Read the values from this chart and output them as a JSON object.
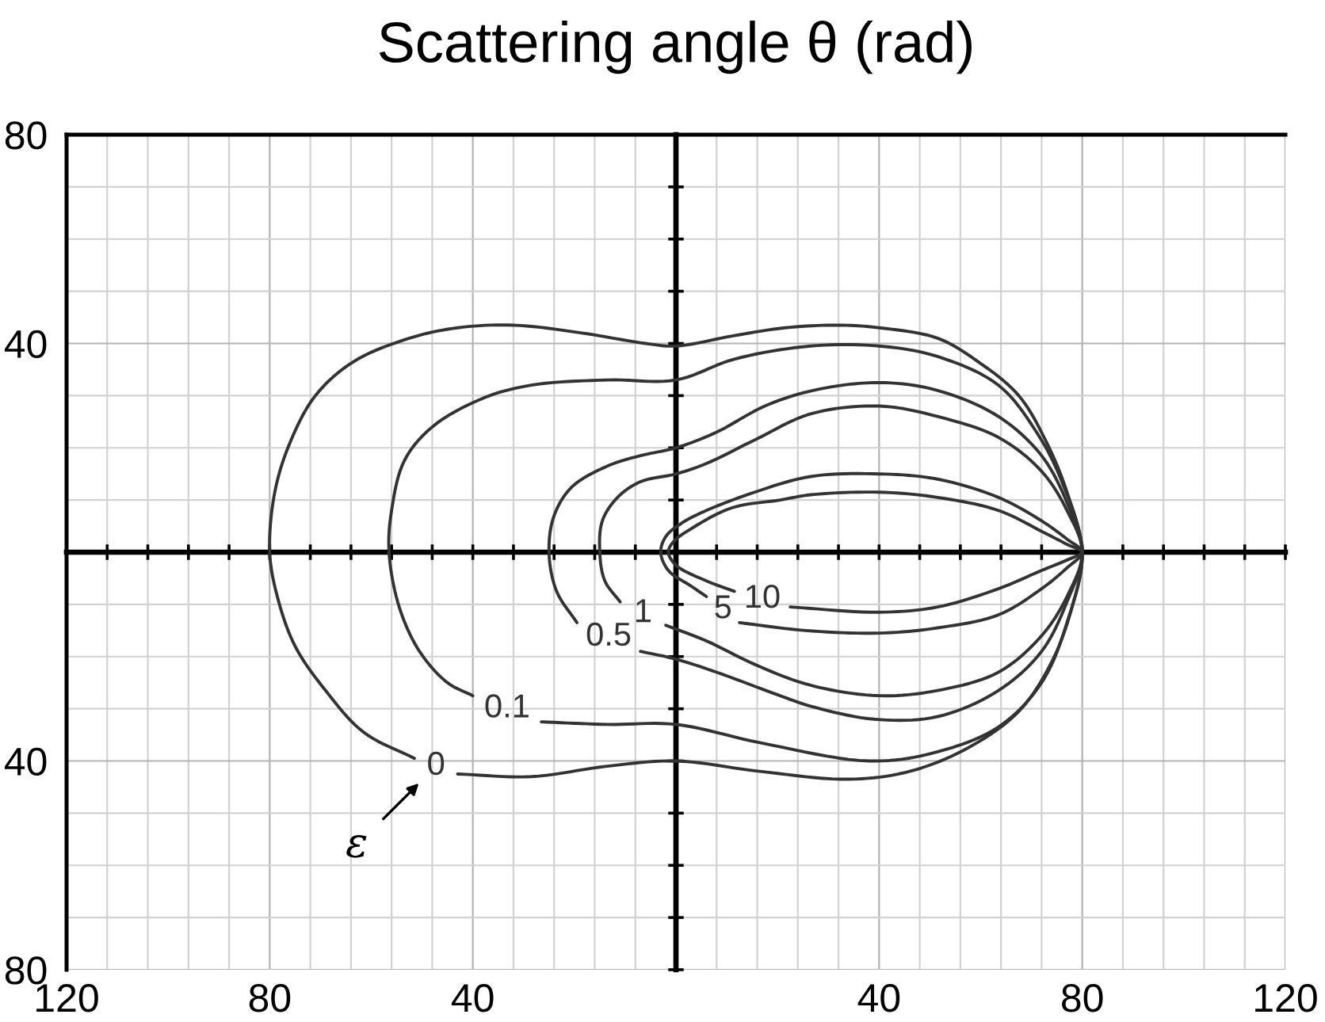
{
  "chart_data": {
    "type": "line",
    "title": "Scattering angle θ (rad)",
    "xlim": [
      -120,
      120
    ],
    "ylim": [
      -80,
      80
    ],
    "xticks": [
      {
        "value": -120,
        "label": "120"
      },
      {
        "value": -112,
        "label": null
      },
      {
        "value": -104,
        "label": null
      },
      {
        "value": -96,
        "label": null
      },
      {
        "value": -88,
        "label": null
      },
      {
        "value": -80,
        "label": "80"
      },
      {
        "value": -72,
        "label": null
      },
      {
        "value": -64,
        "label": null
      },
      {
        "value": -56,
        "label": null
      },
      {
        "value": -48,
        "label": null
      },
      {
        "value": -40,
        "label": "40"
      },
      {
        "value": -32,
        "label": null
      },
      {
        "value": -24,
        "label": null
      },
      {
        "value": -16,
        "label": null
      },
      {
        "value": -8,
        "label": null
      },
      {
        "value": 0,
        "label": null
      },
      {
        "value": 8,
        "label": null
      },
      {
        "value": 16,
        "label": null
      },
      {
        "value": 24,
        "label": null
      },
      {
        "value": 32,
        "label": null
      },
      40,
      {
        "value": 48,
        "label": null
      },
      {
        "value": 56,
        "label": null
      },
      {
        "value": 64,
        "label": null
      },
      {
        "value": 72,
        "label": null
      },
      80,
      {
        "value": 88,
        "label": null
      },
      {
        "value": 96,
        "label": null
      },
      {
        "value": 104,
        "label": null
      },
      {
        "value": 112,
        "label": null
      },
      120
    ],
    "yticks": [
      {
        "value": -80,
        "label": "80"
      },
      {
        "value": -70,
        "label": null
      },
      {
        "value": -60,
        "label": null
      },
      {
        "value": -50,
        "label": null
      },
      {
        "value": -40,
        "label": "40"
      },
      {
        "value": -30,
        "label": null
      },
      {
        "value": -20,
        "label": null
      },
      {
        "value": -10,
        "label": null
      },
      {
        "value": 0,
        "label": null
      },
      {
        "value": 10,
        "label": null
      },
      {
        "value": 20,
        "label": null
      },
      {
        "value": 30,
        "label": null
      },
      40,
      {
        "value": 50,
        "label": null
      },
      {
        "value": 60,
        "label": null
      },
      {
        "value": 70,
        "label": null
      },
      80
    ],
    "grid": true,
    "series": [
      {
        "name": "0",
        "color": "#333333",
        "x": [
          -43,
          -28.5,
          -13.5,
          0,
          16.5,
          34,
          46,
          57.5,
          67.5,
          74,
          78,
          80,
          77,
          73,
          67.5,
          59.5,
          51.5,
          40,
          32,
          21.5,
          11.5,
          0,
          -6,
          -18.5,
          -32,
          -43,
          -52.5,
          -63.5,
          -71,
          -76,
          -79,
          -80,
          -78.5,
          -75,
          -69,
          -61.5,
          -51.5
        ],
        "values": [
          -42.5,
          -43,
          -41,
          -40,
          -42,
          -43.5,
          -42,
          -37.5,
          -30.5,
          -21,
          -10.5,
          0,
          11.5,
          21,
          30,
          36.5,
          41,
          43,
          43.5,
          43,
          41.5,
          39.5,
          40,
          42,
          43.5,
          43,
          41,
          36.5,
          30,
          21,
          11.5,
          0,
          -8.5,
          -18,
          -26.5,
          -34.5,
          -39.5
        ]
      },
      {
        "name": "0.1",
        "color": "#333333",
        "x": [
          -26.5,
          -13.5,
          0,
          16.5,
          38,
          50.5,
          63.5,
          72,
          77,
          80,
          76,
          71,
          63.5,
          51.5,
          40,
          26.5,
          11.5,
          0,
          -13.5,
          -28.5,
          -38,
          -48,
          -53.5,
          -56,
          -56.5,
          -54.5,
          -50.5,
          -45,
          -40
        ],
        "values": [
          -32.5,
          -33,
          -33,
          -36.5,
          -40,
          -38.5,
          -33.5,
          -25,
          -13.5,
          0,
          13.5,
          23,
          32,
          37.5,
          39.5,
          39.5,
          37,
          33,
          33,
          32,
          29.5,
          24,
          17.5,
          8,
          0,
          -10.5,
          -19,
          -25,
          -27.5
        ]
      },
      {
        "name": "0.5",
        "color": "#333333",
        "x": [
          -7,
          0,
          8,
          20.5,
          26.5,
          39,
          51.5,
          63.5,
          72,
          77,
          80,
          77,
          72,
          63.5,
          51.5,
          40,
          27,
          17.5,
          8,
          0,
          -7,
          -13.5,
          -20.5,
          -24,
          -25,
          -23.5,
          -19.5
        ],
        "values": [
          -19,
          -20.5,
          -23,
          -27.5,
          -29.5,
          -32,
          -31.5,
          -26.5,
          -19,
          -9.5,
          0,
          9.5,
          18.5,
          26,
          31,
          32.5,
          31,
          28,
          23,
          20,
          18.5,
          16.5,
          12.5,
          7,
          0,
          -7.5,
          -13.5
        ]
      },
      {
        "name": "1",
        "color": "#333333",
        "x": [
          -2,
          6,
          15.5,
          26.5,
          40,
          51.5,
          63.5,
          72,
          77,
          80,
          77,
          72,
          63.5,
          51.5,
          40,
          26.5,
          15.5,
          6,
          0,
          -7,
          -11.5,
          -14.5,
          -15,
          -14,
          -11
        ],
        "values": [
          -14,
          -17,
          -21.5,
          -25.5,
          -27.5,
          -26.5,
          -23,
          -16,
          -8.5,
          0,
          8,
          15.5,
          22,
          26,
          28,
          26.5,
          21.5,
          17,
          15,
          13.5,
          10.5,
          6,
          0,
          -5.5,
          -9.5
        ]
      },
      {
        "name": "5",
        "color": "#333333",
        "x": [
          12.5,
          25.5,
          40,
          51.5,
          63.5,
          72,
          77,
          80,
          77,
          72,
          63.5,
          51.5,
          40,
          26.5,
          15.5,
          6,
          1,
          -2,
          -3,
          -1.5,
          3,
          6
        ],
        "values": [
          -13.5,
          -15,
          -15.5,
          -14.5,
          -12,
          -7,
          -3,
          0,
          2.5,
          6,
          10.5,
          14,
          15,
          14.5,
          11.5,
          8,
          5.5,
          3,
          0,
          -3.5,
          -6.5,
          -8.5
        ]
      },
      {
        "name": "10",
        "color": "#333333",
        "x": [
          22.5,
          40,
          51.5,
          63.5,
          72,
          77,
          80,
          77,
          72,
          63.5,
          51.5,
          40,
          26.5,
          20.5,
          11,
          3,
          -0.5,
          -1.5,
          0,
          6,
          11.5
        ],
        "values": [
          -10.5,
          -11.5,
          -10.5,
          -7,
          -3.5,
          -1.5,
          0,
          1.5,
          4,
          8,
          10.5,
          11.5,
          11,
          10,
          8.5,
          4.5,
          2,
          0,
          -2.5,
          -5.5,
          -7.5
        ]
      }
    ],
    "annotations": [
      "ε"
    ]
  }
}
